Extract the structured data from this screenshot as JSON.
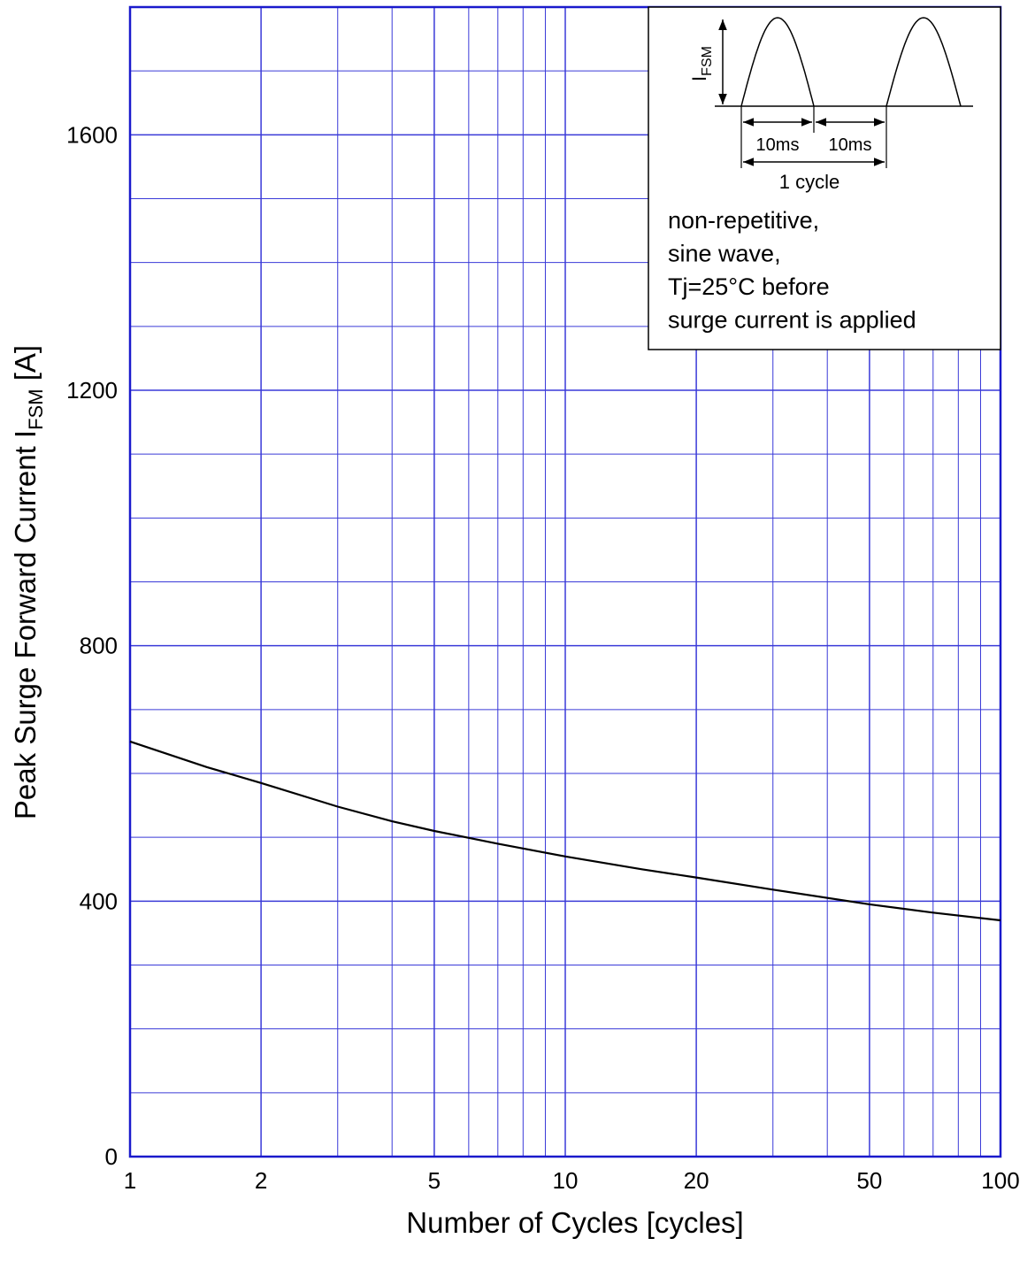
{
  "chart_data": {
    "type": "line",
    "x_label": "Number of Cycles  [cycles]",
    "y_label": [
      "Peak Surge Forward Current  I",
      "FSM",
      " [A]"
    ],
    "x": [
      1,
      1.5,
      2,
      3,
      4,
      5,
      7,
      10,
      15,
      20,
      30,
      50,
      70,
      100
    ],
    "series": [
      {
        "name": null,
        "color": "#000000",
        "values": [
          650,
          610,
          585,
          548,
          525,
          510,
          490,
          470,
          450,
          437,
          418,
          395,
          382,
          370
        ]
      }
    ],
    "xlim": [
      1,
      100
    ],
    "xscale": "log",
    "xticks": [
      1,
      2,
      5,
      10,
      20,
      50,
      100
    ],
    "x_minor_grid": [
      3,
      4,
      6,
      7,
      8,
      9,
      30,
      40,
      60,
      70,
      80,
      90
    ],
    "ylim": [
      0,
      1800
    ],
    "yticks": [
      0,
      400,
      800,
      1200,
      1600
    ],
    "y_minor_grid": [
      100,
      200,
      300,
      500,
      600,
      700,
      900,
      1000,
      1100,
      1300,
      1400,
      1500,
      1700
    ],
    "grid": true,
    "grid_color": "#3a3ad8",
    "inset": {
      "waveform_label": [
        "I",
        "FSM"
      ],
      "half_period": "10ms",
      "half_period_2": "10ms",
      "period": "1 cycle",
      "notes": [
        "non-repetitive,",
        "sine wave,",
        "Tj=25°C before",
        "surge current is applied"
      ]
    }
  }
}
